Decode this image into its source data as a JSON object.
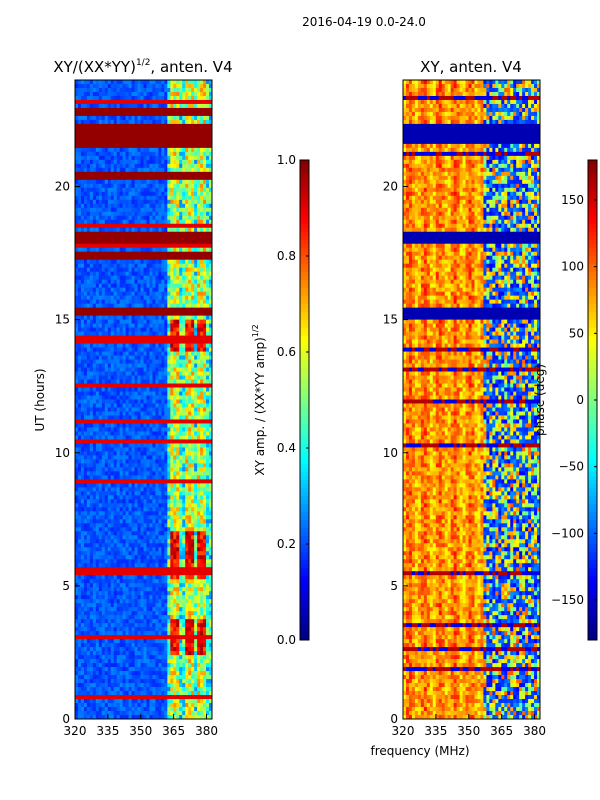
{
  "suptitle": "2016-04-19 0.0-24.0",
  "chart_data": [
    {
      "type": "heatmap",
      "title_main": "XY/(XX*YY)",
      "title_exp": "1/2",
      "title_suffix": ", anten. V4",
      "xlabel": "",
      "ylabel": "UT (hours)",
      "xlim": [
        320,
        382.5
      ],
      "ylim": [
        0,
        24
      ],
      "xticks": [
        "320",
        "335",
        "350",
        "365",
        "380"
      ],
      "xtick_values": [
        320,
        335,
        350,
        365,
        380
      ],
      "yticks": [
        "0",
        "5",
        "10",
        "15",
        "20"
      ],
      "ytick_values": [
        0,
        5,
        10,
        15,
        20
      ],
      "colormap": "jet",
      "colorbar": {
        "label_main": "XY amp. / (XX*YY amp)",
        "label_exp": "1/2",
        "range": [
          0.0,
          1.0
        ],
        "ticks": [
          "0.0",
          "0.2",
          "0.4",
          "0.6",
          "0.8",
          "1.0"
        ],
        "tick_values": [
          0.0,
          0.2,
          0.4,
          0.6,
          0.8,
          1.0
        ]
      },
      "flagged_bands_hours": [
        [
          20.2,
          20.5
        ],
        [
          21.5,
          22.3
        ],
        [
          22.6,
          23.0
        ],
        [
          17.9,
          18.3
        ],
        [
          17.2,
          17.5
        ],
        [
          15.1,
          15.5
        ]
      ],
      "bright_channels_mhz": [
        365,
        372,
        378
      ],
      "bright_hours": [
        [
          2.4,
          3.8
        ],
        [
          5.2,
          7.0
        ],
        [
          13.8,
          15.0
        ]
      ]
    },
    {
      "type": "heatmap",
      "title_main": "XY, anten. V4",
      "xlabel": "frequency (MHz)",
      "ylabel": "",
      "xlim": [
        320,
        382.5
      ],
      "ylim": [
        0,
        24
      ],
      "xticks": [
        "320",
        "335",
        "350",
        "365",
        "380"
      ],
      "xtick_values": [
        320,
        335,
        350,
        365,
        380
      ],
      "yticks": [
        "0",
        "5",
        "10",
        "15",
        "20"
      ],
      "ytick_values": [
        0,
        5,
        10,
        15,
        20
      ],
      "colormap": "jet",
      "colorbar": {
        "label_main": "phase (deg)",
        "range": [
          -180,
          180
        ],
        "ticks": [
          "−150",
          "−100",
          "−50",
          "0",
          "50",
          "100",
          "150"
        ],
        "tick_values": [
          -150,
          -100,
          -50,
          0,
          50,
          100,
          150
        ]
      },
      "flagged_bands_hours": [
        [
          21.6,
          22.4
        ],
        [
          15.0,
          15.5
        ],
        [
          17.9,
          18.3
        ]
      ],
      "phase_jump_mhz": 357
    }
  ]
}
